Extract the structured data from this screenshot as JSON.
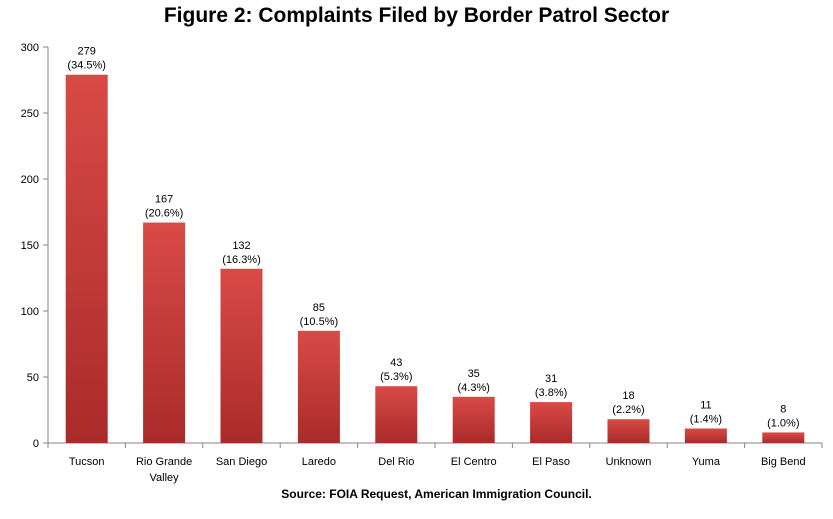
{
  "title": "Figure 2: Complaints Filed by Border Patrol Sector",
  "source": "Source: FOIA Request, American Immigration Council.",
  "colors": {
    "bar_top": "#d94a46",
    "bar_bottom": "#a92b2a",
    "axis": "#868686"
  },
  "chart_data": {
    "type": "bar",
    "title": "Figure 2: Complaints Filed by Border Patrol Sector",
    "xlabel": "",
    "ylabel": "",
    "ylim": [
      0,
      300
    ],
    "yticks": [
      0,
      50,
      100,
      150,
      200,
      250,
      300
    ],
    "grid": false,
    "legend": "none",
    "categories": [
      [
        "Tucson"
      ],
      [
        "Rio Grande",
        "Valley"
      ],
      [
        "San Diego"
      ],
      [
        "Laredo"
      ],
      [
        "Del Rio"
      ],
      [
        "El Centro"
      ],
      [
        "El Paso"
      ],
      [
        "Unknown"
      ],
      [
        "Yuma"
      ],
      [
        "Big Bend"
      ]
    ],
    "values": [
      279,
      167,
      132,
      85,
      43,
      35,
      31,
      18,
      11,
      8
    ],
    "percent_labels": [
      "(34.5%)",
      "(20.6%)",
      "(16.3%)",
      "(10.5%)",
      "(5.3%)",
      "(4.3%)",
      "(3.8%)",
      "(2.2%)",
      "(1.4%)",
      "(1.0%)"
    ]
  }
}
